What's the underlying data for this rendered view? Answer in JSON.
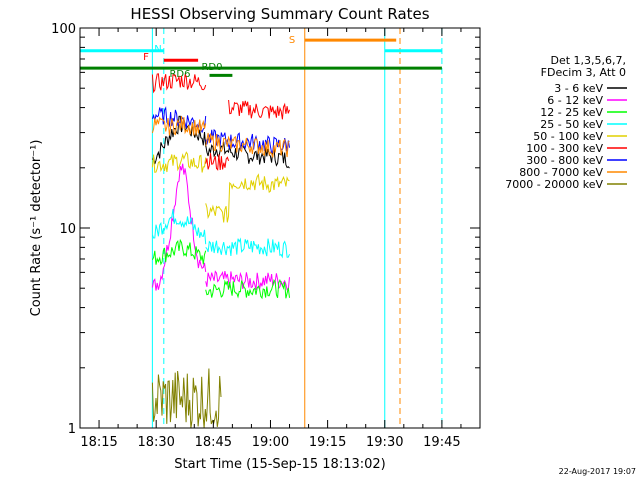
{
  "chart_data": {
    "type": "line",
    "title": "HESSI Observing Summary Count Rates",
    "xlabel": "Start Time (15-Sep-15 18:13:02)",
    "ylabel": "Count Rate (s⁻¹ detector⁻¹)",
    "yscale": "log",
    "xlim": [
      "18:10",
      "19:55"
    ],
    "ylim": [
      1,
      100
    ],
    "x_ticks": [
      "18:15",
      "18:30",
      "18:45",
      "19:00",
      "19:15",
      "19:30",
      "19:45"
    ],
    "y_ticks": [
      "1",
      "10",
      "100"
    ],
    "grid": false,
    "legend_position": "right",
    "legend_header": [
      "Det 1,3,5,6,7,",
      "FDecim 3, Att 0"
    ],
    "footer_date": "22-Aug-2017 19:07",
    "colors": {
      "3-6": "#000000",
      "6-12": "#ff00ff",
      "12-25": "#00ff00",
      "25-50": "#00ffff",
      "50-100": "#e0d000",
      "100-300": "#ff0000",
      "300-800": "#0000ff",
      "800-7000": "#ff8800",
      "7000-20000": "#808000",
      "flag_s": "#ff8800",
      "flag_n": "#00ffff",
      "flag_f": "#ff0000",
      "flag_rd": "#008000"
    },
    "series": [
      {
        "name": "3 - 6 keV",
        "color": "#000000",
        "segments": [
          {
            "x": [
              "18:29",
              "18:30",
              "18:32",
              "18:34",
              "18:36",
              "18:38",
              "18:40",
              "18:42",
              "18:43"
            ],
            "y": [
              22,
              23,
              26,
              30,
              33,
              32,
              30,
              29,
              27
            ]
          },
          {
            "x": [
              "18:43",
              "18:46",
              "18:50",
              "18:55",
              "19:00",
              "19:05"
            ],
            "y": [
              24,
              25,
              24,
              23,
              23,
              22
            ]
          }
        ]
      },
      {
        "name": "6 - 12 keV",
        "color": "#ff00ff",
        "segments": [
          {
            "x": [
              "18:29",
              "18:31",
              "18:33",
              "18:35",
              "18:36",
              "18:37",
              "18:38",
              "18:39",
              "18:40",
              "18:41",
              "18:43"
            ],
            "y": [
              5,
              5.5,
              8,
              14,
              19,
              20,
              17,
              12,
              9,
              7,
              6
            ]
          },
          {
            "x": [
              "18:43",
              "18:50",
              "18:55",
              "19:00",
              "19:05"
            ],
            "y": [
              5.5,
              5.5,
              5.4,
              5.5,
              5.4
            ]
          }
        ]
      },
      {
        "name": "12 - 25 keV",
        "color": "#00ff00",
        "segments": [
          {
            "x": [
              "18:29",
              "18:33",
              "18:37",
              "18:40",
              "18:43"
            ],
            "y": [
              7,
              7.5,
              8,
              7.5,
              7
            ]
          },
          {
            "x": [
              "18:43",
              "18:46",
              "18:50",
              "18:55",
              "19:00",
              "19:05"
            ],
            "y": [
              4.8,
              4.9,
              5,
              4.9,
              5,
              4.9
            ]
          }
        ]
      },
      {
        "name": "25 - 50 keV",
        "color": "#00ffff",
        "segments": [
          {
            "x": [
              "18:29",
              "18:31",
              "18:33",
              "18:35",
              "18:37",
              "18:39",
              "18:41",
              "18:43"
            ],
            "y": [
              9,
              10,
              11,
              11.5,
              11,
              10.5,
              9.5,
              9
            ]
          },
          {
            "x": [
              "18:43",
              "18:46",
              "18:50",
              "18:55",
              "19:00",
              "19:05"
            ],
            "y": [
              8,
              8.2,
              8,
              8.1,
              8,
              7.9
            ]
          }
        ]
      },
      {
        "name": "50 - 100 keV",
        "color": "#e0d000",
        "segments": [
          {
            "x": [
              "18:29",
              "18:33",
              "18:37",
              "18:40",
              "18:43"
            ],
            "y": [
              21,
              21,
              22,
              21,
              21
            ]
          },
          {
            "x": [
              "18:43",
              "18:46",
              "18:49",
              "18:49",
              "18:55",
              "19:00",
              "19:05"
            ],
            "y": [
              12,
              12,
              11.5,
              17,
              17,
              16.5,
              16.5
            ]
          }
        ]
      },
      {
        "name": "100 - 300 keV",
        "color": "#ff0000",
        "segments": [
          {
            "x": [
              "18:29",
              "18:33",
              "18:37",
              "18:40",
              "18:43"
            ],
            "y": [
              53,
              54,
              55,
              54,
              53
            ]
          },
          {
            "x": [
              "18:43",
              "18:46",
              "18:49"
            ],
            "y": [
              22,
              21,
              22
            ]
          },
          {
            "x": [
              "18:49",
              "18:55",
              "19:00",
              "19:05"
            ],
            "y": [
              40,
              39,
              38,
              38
            ]
          }
        ]
      },
      {
        "name": "300 - 800 keV",
        "color": "#0000ff",
        "segments": [
          {
            "x": [
              "18:29",
              "18:33",
              "18:37",
              "18:40",
              "18:43"
            ],
            "y": [
              37,
              36,
              35,
              34,
              33
            ]
          },
          {
            "x": [
              "18:43",
              "18:46",
              "18:50",
              "18:55",
              "19:00",
              "19:05"
            ],
            "y": [
              28,
              28,
              27,
              27,
              26,
              26
            ]
          }
        ]
      },
      {
        "name": "800 - 7000 keV",
        "color": "#ff8800",
        "segments": [
          {
            "x": [
              "18:29",
              "18:33",
              "18:37",
              "18:40",
              "18:43"
            ],
            "y": [
              33,
              32,
              33,
              32,
              31
            ]
          },
          {
            "x": [
              "18:43",
              "18:46",
              "18:50",
              "18:55",
              "19:00",
              "19:05"
            ],
            "y": [
              27,
              27,
              26,
              26,
              25,
              25
            ]
          }
        ]
      },
      {
        "name": "7000 - 20000 keV",
        "color": "#808000",
        "segments": [
          {
            "x": [
              "18:29",
              "18:35",
              "18:41",
              "18:47"
            ],
            "y": [
              1.4,
              1.4,
              1.4,
              1.4
            ]
          }
        ]
      }
    ],
    "flags": [
      {
        "label": "S",
        "color": "#ff8800",
        "value": 87,
        "x_start": "19:09",
        "x_end": "19:33"
      },
      {
        "label": "N",
        "color": "#00ffff",
        "value": 77,
        "x_start": "18:10",
        "x_end": "18:32"
      },
      {
        "label": "",
        "color": "#00ffff",
        "value": 77,
        "x_start": "19:30",
        "x_end": "19:45"
      },
      {
        "label": "F",
        "color": "#ff0000",
        "value": 69,
        "x_start": "18:32",
        "x_end": "18:41"
      },
      {
        "label": "",
        "color": "#008000",
        "value": 63,
        "x_start": "18:10",
        "x_end": "19:45"
      },
      {
        "label": "RD6",
        "color": "#008000",
        "value": 0,
        "x_start": "",
        "x_end": ""
      },
      {
        "label": "RD0",
        "color": "#008000",
        "value": 58,
        "x_start": "18:44",
        "x_end": "18:50"
      }
    ],
    "vertical_lines": [
      {
        "x": "18:10",
        "color": "#00ffff",
        "style": "solid"
      },
      {
        "x": "18:29",
        "color": "#00ffff",
        "style": "solid"
      },
      {
        "x": "18:32",
        "color": "#00ffff",
        "style": "dashed"
      },
      {
        "x": "19:09",
        "color": "#ff8800",
        "style": "solid"
      },
      {
        "x": "19:30",
        "color": "#00ffff",
        "style": "solid"
      },
      {
        "x": "19:34",
        "color": "#ff8800",
        "style": "dashed"
      },
      {
        "x": "19:45",
        "color": "#00ffff",
        "style": "dashed"
      }
    ]
  }
}
